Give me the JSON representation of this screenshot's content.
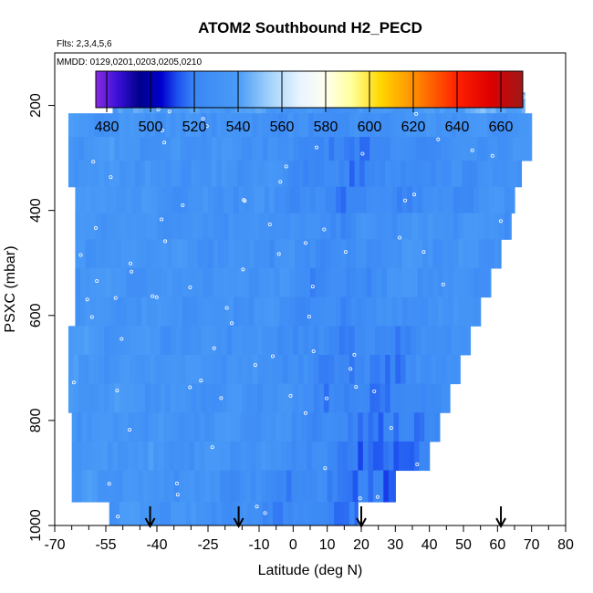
{
  "chart_data": {
    "type": "heatmap",
    "title": "ATOM2 Southbound H2_PECD",
    "subtitle_flights": "Flts: 2,3,4,5,6",
    "subtitle_dates": "MMDD: 0129,0201,0203,0205,0210",
    "xlabel": "Latitude (deg N)",
    "ylabel": "PSXC (mbar)",
    "xlim": [
      -70,
      80
    ],
    "ylim": [
      1000,
      100
    ],
    "x_ticks": [
      "-70",
      "-55",
      "-40",
      "-25",
      "-10",
      "0",
      "10",
      "20",
      "30",
      "40",
      "50",
      "60",
      "70",
      "80"
    ],
    "x_tick_values": [
      -70,
      -55,
      -40,
      -25,
      -10,
      0,
      10,
      20,
      30,
      40,
      50,
      60,
      70,
      80
    ],
    "y_ticks": [
      "200",
      "400",
      "600",
      "800",
      "1000"
    ],
    "y_tick_values": [
      200,
      400,
      600,
      800,
      1000
    ],
    "colorbar": {
      "min": 475,
      "max": 670,
      "tick_labels": [
        "480",
        "500",
        "520",
        "540",
        "560",
        "580",
        "600",
        "620",
        "640",
        "660"
      ],
      "tick_values": [
        480,
        500,
        520,
        540,
        560,
        580,
        600,
        620,
        640,
        660
      ],
      "colors": [
        {
          "value": 475,
          "color": "#8a2be2"
        },
        {
          "value": 485,
          "color": "#3a10d8"
        },
        {
          "value": 495,
          "color": "#00008b"
        },
        {
          "value": 505,
          "color": "#0000cd"
        },
        {
          "value": 512,
          "color": "#1c4ff0"
        },
        {
          "value": 520,
          "color": "#3a86f5"
        },
        {
          "value": 540,
          "color": "#4a9cf7"
        },
        {
          "value": 555,
          "color": "#a6d4fb"
        },
        {
          "value": 568,
          "color": "#e8f4ff"
        },
        {
          "value": 580,
          "color": "#fffff0"
        },
        {
          "value": 592,
          "color": "#ffff99"
        },
        {
          "value": 605,
          "color": "#ffd700"
        },
        {
          "value": 620,
          "color": "#ff9000"
        },
        {
          "value": 640,
          "color": "#ff2000"
        },
        {
          "value": 655,
          "color": "#dd0000"
        },
        {
          "value": 670,
          "color": "#a01818"
        }
      ]
    },
    "pressure_bands": [
      {
        "p_top": 175,
        "p_bot": 215,
        "lat_min": -53,
        "lat_max": 68
      },
      {
        "p_top": 215,
        "p_bot": 260,
        "lat_min": -66,
        "lat_max": 70
      },
      {
        "p_top": 260,
        "p_bot": 305,
        "lat_min": -66,
        "lat_max": 70
      },
      {
        "p_top": 305,
        "p_bot": 355,
        "lat_min": -66,
        "lat_max": 67
      },
      {
        "p_top": 355,
        "p_bot": 405,
        "lat_min": -64,
        "lat_max": 65
      },
      {
        "p_top": 405,
        "p_bot": 455,
        "lat_min": -64,
        "lat_max": 64
      },
      {
        "p_top": 455,
        "p_bot": 510,
        "lat_min": -64,
        "lat_max": 61
      },
      {
        "p_top": 510,
        "p_bot": 565,
        "lat_min": -64,
        "lat_max": 58
      },
      {
        "p_top": 565,
        "p_bot": 620,
        "lat_min": -64,
        "lat_max": 55
      },
      {
        "p_top": 620,
        "p_bot": 675,
        "lat_min": -66,
        "lat_max": 52
      },
      {
        "p_top": 675,
        "p_bot": 730,
        "lat_min": -66,
        "lat_max": 49
      },
      {
        "p_top": 730,
        "p_bot": 785,
        "lat_min": -66,
        "lat_max": 46
      },
      {
        "p_top": 785,
        "p_bot": 840,
        "lat_min": -65,
        "lat_max": 43
      },
      {
        "p_top": 840,
        "p_bot": 895,
        "lat_min": -65,
        "lat_max": 40
      },
      {
        "p_top": 895,
        "p_bot": 955,
        "lat_min": -65,
        "lat_max": 30
      },
      {
        "p_top": 955,
        "p_bot": 1005,
        "lat_min": -54,
        "lat_max": 19
      }
    ],
    "arrow_latitudes": [
      -42,
      -16,
      20,
      61
    ]
  }
}
